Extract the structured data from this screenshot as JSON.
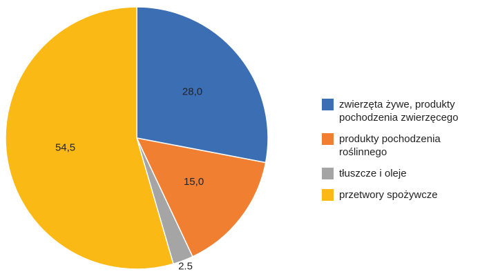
{
  "chart_data": {
    "type": "pie",
    "categories": [
      "zwierzęta żywe, produkty pochodzenia zwierzęcego",
      "produkty pochodzenia roślinnego",
      "tłuszcze i oleje",
      "przetwory spożywcze"
    ],
    "values": [
      28.0,
      15.0,
      2.5,
      54.5
    ],
    "value_labels": [
      "28,0",
      "15,0",
      "2.5",
      "54,5"
    ],
    "colors": [
      "#3c6eb4",
      "#f07f32",
      "#a5a5a5",
      "#fbb915"
    ],
    "legend": "right"
  }
}
